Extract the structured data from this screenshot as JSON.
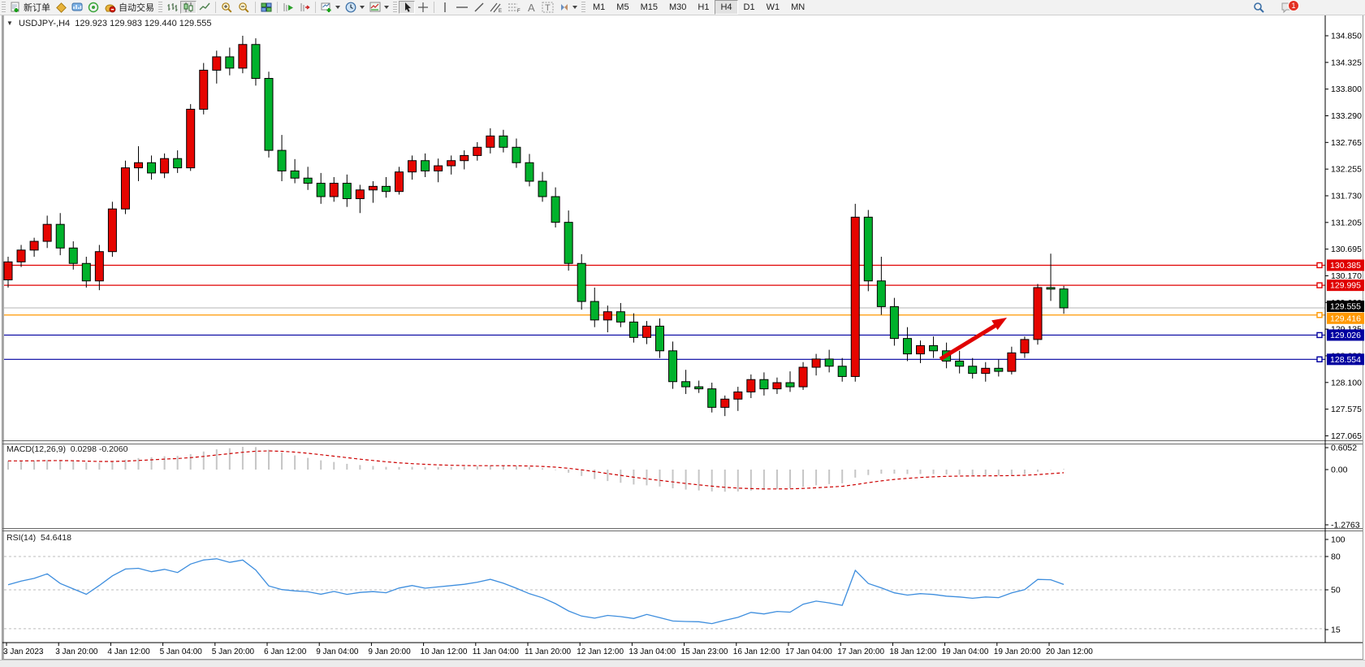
{
  "toolbar": {
    "new_order_label": "新订单",
    "autotrading_label": "自动交易",
    "timeframes": [
      "M1",
      "M5",
      "M15",
      "M30",
      "H1",
      "H4",
      "D1",
      "W1",
      "MN"
    ],
    "active_timeframe": "H4",
    "notification_count": "1"
  },
  "chart": {
    "title_text": "USDJPY-,H4",
    "ohlc_text": "129.923 129.983 129.440 129.555",
    "up_color": "#e60500",
    "down_color": "#00b22c",
    "wick_color": "#000000",
    "price_axis_ticks": [
      "134.850",
      "134.325",
      "133.800",
      "133.290",
      "132.765",
      "132.255",
      "131.730",
      "131.205",
      "130.695",
      "130.170",
      "129.660",
      "129.135",
      "128.620",
      "128.100",
      "127.575",
      "127.065"
    ],
    "time_labels": [
      "3 Jan 2023",
      "3 Jan 20:00",
      "4 Jan 12:00",
      "5 Jan 04:00",
      "5 Jan 20:00",
      "6 Jan 12:00",
      "9 Jan 04:00",
      "9 Jan 20:00",
      "10 Jan 12:00",
      "11 Jan 04:00",
      "11 Jan 20:00",
      "12 Jan 12:00",
      "13 Jan 04:00",
      "15 Jan 23:00",
      "16 Jan 12:00",
      "17 Jan 04:00",
      "17 Jan 20:00",
      "18 Jan 12:00",
      "19 Jan 04:00",
      "19 Jan 20:00",
      "20 Jan 12:00"
    ],
    "hlines": [
      {
        "price_text": "130.385",
        "value": 130.385,
        "color": "#e00000"
      },
      {
        "price_text": "129.995",
        "value": 129.995,
        "color": "#e00000"
      },
      {
        "price_text": "129.416",
        "value": 129.416,
        "color": "#ff9800"
      },
      {
        "price_text": "129.026",
        "value": 129.026,
        "color": "#0000a0"
      },
      {
        "price_text": "128.554",
        "value": 128.554,
        "color": "#0000a0"
      }
    ],
    "current_price": {
      "text": "129.555",
      "value": 129.555,
      "line_color": "#b4b4b4",
      "label_bg": "#000000"
    },
    "arrow_color": "#e00000",
    "candles": [
      [
        130.1,
        130.55,
        129.95,
        130.45
      ],
      [
        130.45,
        130.78,
        130.35,
        130.68
      ],
      [
        130.68,
        130.92,
        130.55,
        130.85
      ],
      [
        130.85,
        131.35,
        130.72,
        131.18
      ],
      [
        131.18,
        131.4,
        130.58,
        130.72
      ],
      [
        130.72,
        130.85,
        130.3,
        130.42
      ],
      [
        130.42,
        130.55,
        129.95,
        130.08
      ],
      [
        130.08,
        130.78,
        129.9,
        130.65
      ],
      [
        130.65,
        131.62,
        130.55,
        131.48
      ],
      [
        131.48,
        132.42,
        131.38,
        132.28
      ],
      [
        132.28,
        132.7,
        132.02,
        132.38
      ],
      [
        132.38,
        132.52,
        132.05,
        132.18
      ],
      [
        132.18,
        132.56,
        132.08,
        132.46
      ],
      [
        132.46,
        132.62,
        132.18,
        132.28
      ],
      [
        132.28,
        133.52,
        132.22,
        133.42
      ],
      [
        133.42,
        134.32,
        133.32,
        134.18
      ],
      [
        134.18,
        134.56,
        133.92,
        134.44
      ],
      [
        134.44,
        134.62,
        134.08,
        134.22
      ],
      [
        134.22,
        134.85,
        134.12,
        134.68
      ],
      [
        134.68,
        134.8,
        133.88,
        134.02
      ],
      [
        134.02,
        134.15,
        132.48,
        132.62
      ],
      [
        132.62,
        132.92,
        132.02,
        132.22
      ],
      [
        132.22,
        132.45,
        131.98,
        132.08
      ],
      [
        132.08,
        132.3,
        131.85,
        131.98
      ],
      [
        131.98,
        132.18,
        131.58,
        131.72
      ],
      [
        131.72,
        132.1,
        131.62,
        131.98
      ],
      [
        131.98,
        132.15,
        131.52,
        131.68
      ],
      [
        131.68,
        131.95,
        131.4,
        131.85
      ],
      [
        131.85,
        132.02,
        131.6,
        131.92
      ],
      [
        131.92,
        132.1,
        131.7,
        131.82
      ],
      [
        131.82,
        132.3,
        131.76,
        132.2
      ],
      [
        132.2,
        132.52,
        132.05,
        132.42
      ],
      [
        132.42,
        132.56,
        132.1,
        132.22
      ],
      [
        132.22,
        132.46,
        132.0,
        132.32
      ],
      [
        132.32,
        132.52,
        132.15,
        132.42
      ],
      [
        132.42,
        132.62,
        132.25,
        132.52
      ],
      [
        132.52,
        132.78,
        132.42,
        132.68
      ],
      [
        132.68,
        133.05,
        132.56,
        132.9
      ],
      [
        132.9,
        133.02,
        132.58,
        132.68
      ],
      [
        132.68,
        132.85,
        132.28,
        132.38
      ],
      [
        132.38,
        132.55,
        131.92,
        132.02
      ],
      [
        132.02,
        132.2,
        131.62,
        131.72
      ],
      [
        131.72,
        131.9,
        131.12,
        131.22
      ],
      [
        131.22,
        131.45,
        130.28,
        130.42
      ],
      [
        130.42,
        130.6,
        129.52,
        129.68
      ],
      [
        129.68,
        129.95,
        129.18,
        129.32
      ],
      [
        129.32,
        129.6,
        129.08,
        129.48
      ],
      [
        129.48,
        129.65,
        129.18,
        129.28
      ],
      [
        129.28,
        129.45,
        128.88,
        128.98
      ],
      [
        128.98,
        129.3,
        128.85,
        129.2
      ],
      [
        129.2,
        129.35,
        128.58,
        128.72
      ],
      [
        128.72,
        128.9,
        127.98,
        128.12
      ],
      [
        128.12,
        128.35,
        127.88,
        128.02
      ],
      [
        128.02,
        128.14,
        127.9,
        127.98
      ],
      [
        127.98,
        128.1,
        127.52,
        127.62
      ],
      [
        127.62,
        127.85,
        127.45,
        127.78
      ],
      [
        127.78,
        128.02,
        127.55,
        127.92
      ],
      [
        127.92,
        128.26,
        127.8,
        128.16
      ],
      [
        128.16,
        128.3,
        127.85,
        127.98
      ],
      [
        127.98,
        128.2,
        127.88,
        128.1
      ],
      [
        128.1,
        128.32,
        127.92,
        128.02
      ],
      [
        128.02,
        128.5,
        127.96,
        128.4
      ],
      [
        128.4,
        128.66,
        128.24,
        128.56
      ],
      [
        128.56,
        128.74,
        128.3,
        128.42
      ],
      [
        128.42,
        128.58,
        128.12,
        128.22
      ],
      [
        128.22,
        131.58,
        128.12,
        131.32
      ],
      [
        131.32,
        131.46,
        129.88,
        130.08
      ],
      [
        130.08,
        130.55,
        129.42,
        129.58
      ],
      [
        129.58,
        129.75,
        128.82,
        128.96
      ],
      [
        128.96,
        129.18,
        128.52,
        128.66
      ],
      [
        128.66,
        128.92,
        128.48,
        128.82
      ],
      [
        128.82,
        129.0,
        128.58,
        128.72
      ],
      [
        128.72,
        128.88,
        128.38,
        128.52
      ],
      [
        128.52,
        128.72,
        128.28,
        128.42
      ],
      [
        128.42,
        128.58,
        128.18,
        128.28
      ],
      [
        128.28,
        128.5,
        128.12,
        128.38
      ],
      [
        128.38,
        128.55,
        128.22,
        128.32
      ],
      [
        128.32,
        128.8,
        128.26,
        128.68
      ],
      [
        128.68,
        129.0,
        128.58,
        128.94
      ],
      [
        128.94,
        130.02,
        128.84,
        129.95
      ],
      [
        129.95,
        130.61,
        129.69,
        129.92
      ],
      [
        129.923,
        129.983,
        129.44,
        129.555
      ]
    ]
  },
  "macd": {
    "label": "MACD(12,26,9)",
    "values_text": "0.0298 -0.2060",
    "axis_labels": [
      "0.6052",
      "0.00",
      "-1.2763"
    ],
    "histogram_color": "#c6c6c6",
    "signal_color": "#cc0000"
  },
  "rsi": {
    "label": "RSI(14)",
    "value_text": "54.6418",
    "levels": [
      "100",
      "80",
      "50",
      "15"
    ],
    "line_color": "#3e8ede",
    "level_line_color": "#bcbcbc"
  }
}
